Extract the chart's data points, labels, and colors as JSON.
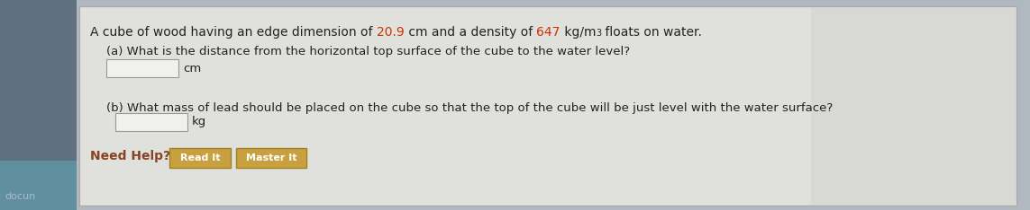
{
  "bg_outer_color": "#b0b8c0",
  "bg_photo_color": "#607080",
  "panel_color": "#e0e0dc",
  "panel_border_color": "#aaaaaa",
  "main_text": "A cube of wood having an edge dimension of ",
  "highlight1": "20.9",
  "mid_text1": " cm and a density of ",
  "highlight2": "647",
  "mid_text2": " kg/m",
  "superscript": "3",
  "end_text": " floats on water.",
  "q_a_label": "(a) What is the distance from the horizontal top surface of the cube to the water level?",
  "q_a_unit": "cm",
  "q_b_label": "(b) What mass of lead should be placed on the cube so that the top of the cube will be just level with the water surface?",
  "q_b_unit": "kg",
  "need_help_text": "Need Help?",
  "btn1_text": "Read It",
  "btn2_text": "Master It",
  "highlight_color": "#cc3300",
  "text_color": "#222222",
  "btn_face_color": "#c8a040",
  "btn_border_color": "#a08020",
  "btn_text_color": "#ffffff",
  "need_help_color": "#884422",
  "input_box_color": "#f0f0ec",
  "input_border_color": "#999999",
  "docum_text": "docun",
  "font_size_main": 10,
  "font_size_sub": 9.5,
  "font_size_btn": 8,
  "font_size_need": 10
}
